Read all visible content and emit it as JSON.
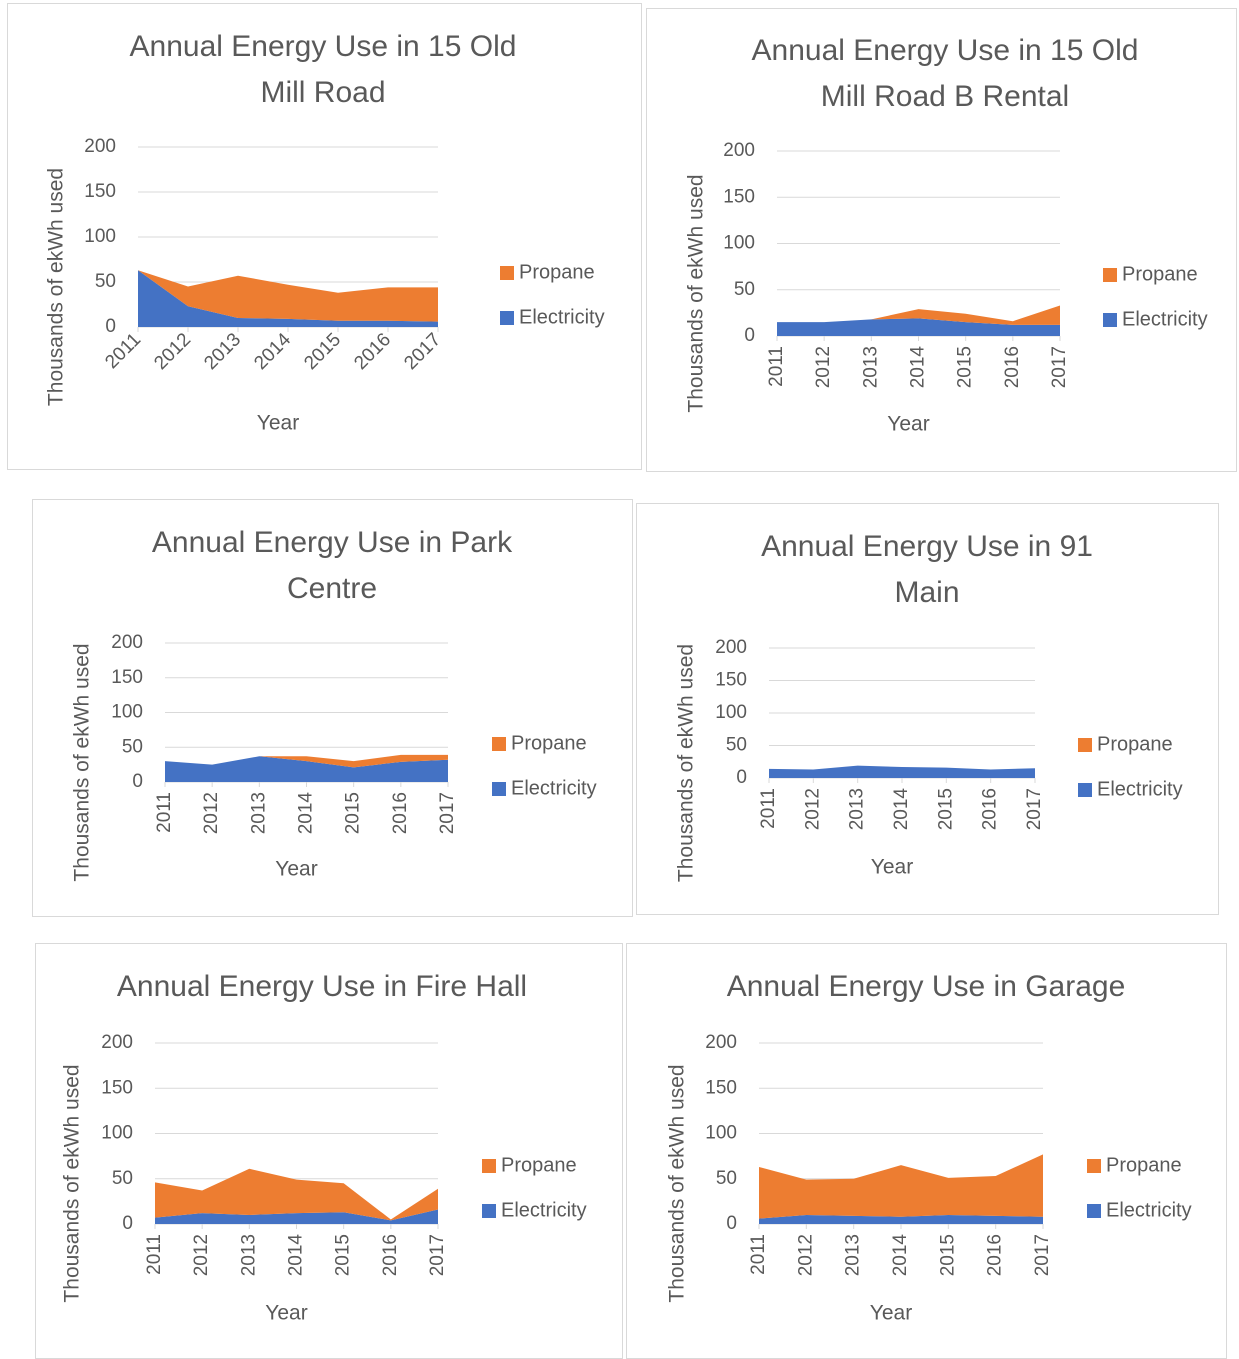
{
  "chart_data": [
    {
      "type": "area",
      "title": "Annual Energy Use in 15 Old Mill Road",
      "xlabel": "Year",
      "ylabel": "Thousands of ekWh used",
      "categories": [
        "2011",
        "2012",
        "2013",
        "2014",
        "2015",
        "2016",
        "2017"
      ],
      "series": [
        {
          "name": "Electricity",
          "color": "#4472c4",
          "values": [
            63,
            23,
            10,
            9,
            7,
            7,
            6
          ]
        },
        {
          "name": "Propane",
          "color": "#ed7d31",
          "values": [
            0,
            22,
            47,
            38,
            31,
            37,
            38
          ]
        }
      ],
      "ylim": [
        0,
        200
      ],
      "yticks": [
        0,
        50,
        100,
        150,
        200
      ],
      "grid": true,
      "stacked": true,
      "legend": "right"
    },
    {
      "type": "area",
      "title": "Annual Energy Use in 15 Old Mill Road B Rental",
      "xlabel": "Year",
      "ylabel": "Thousands of ekWh used",
      "categories": [
        "2011",
        "2012",
        "2013",
        "2014",
        "2015",
        "2016",
        "2017"
      ],
      "series": [
        {
          "name": "Electricity",
          "color": "#4472c4",
          "values": [
            15,
            15,
            18,
            19,
            15,
            12,
            12
          ]
        },
        {
          "name": "Propane",
          "color": "#ed7d31",
          "values": [
            0,
            0,
            0,
            10,
            9,
            4,
            21
          ]
        }
      ],
      "ylim": [
        0,
        200
      ],
      "yticks": [
        0,
        50,
        100,
        150,
        200
      ],
      "grid": true,
      "stacked": true,
      "legend": "right"
    },
    {
      "type": "area",
      "title": "Annual Energy Use in Park Centre",
      "xlabel": "Year",
      "ylabel": "Thousands of ekWh used",
      "categories": [
        "2011",
        "2012",
        "2013",
        "2014",
        "2015",
        "2016",
        "2017"
      ],
      "series": [
        {
          "name": "Electricity",
          "color": "#4472c4",
          "values": [
            30,
            25,
            37,
            30,
            21,
            29,
            32
          ]
        },
        {
          "name": "Propane",
          "color": "#ed7d31",
          "values": [
            0,
            0,
            0,
            7,
            9,
            10,
            7
          ]
        }
      ],
      "ylim": [
        0,
        200
      ],
      "yticks": [
        0,
        50,
        100,
        150,
        200
      ],
      "grid": true,
      "stacked": true,
      "legend": "right"
    },
    {
      "type": "area",
      "title": "Annual Energy Use in 91 Main",
      "xlabel": "Year",
      "ylabel": "Thousands of ekWh used",
      "categories": [
        "2011",
        "2012",
        "2013",
        "2014",
        "2015",
        "2016",
        "2017"
      ],
      "series": [
        {
          "name": "Electricity",
          "color": "#4472c4",
          "values": [
            14,
            13,
            19,
            17,
            16,
            13,
            15
          ]
        },
        {
          "name": "Propane",
          "color": "#ed7d31",
          "values": [
            0,
            0,
            0,
            0,
            0,
            0,
            0
          ]
        }
      ],
      "ylim": [
        0,
        200
      ],
      "yticks": [
        0,
        50,
        100,
        150,
        200
      ],
      "grid": true,
      "stacked": true,
      "legend": "right"
    },
    {
      "type": "area",
      "title": "Annual Energy Use in Fire Hall",
      "xlabel": "Year",
      "ylabel": "Thousands of ekWh used",
      "categories": [
        "2011",
        "2012",
        "2013",
        "2014",
        "2015",
        "2016",
        "2017"
      ],
      "series": [
        {
          "name": "Electricity",
          "color": "#4472c4",
          "values": [
            7,
            12,
            10,
            12,
            13,
            4,
            16
          ]
        },
        {
          "name": "Propane",
          "color": "#ed7d31",
          "values": [
            39,
            25,
            51,
            37,
            32,
            1,
            23
          ]
        }
      ],
      "ylim": [
        0,
        200
      ],
      "yticks": [
        0,
        50,
        100,
        150,
        200
      ],
      "grid": true,
      "stacked": true,
      "legend": "right"
    },
    {
      "type": "area",
      "title": "Annual Energy Use in Garage",
      "xlabel": "Year",
      "ylabel": "Thousands of ekWh used",
      "categories": [
        "2011",
        "2012",
        "2013",
        "2014",
        "2015",
        "2016",
        "2017"
      ],
      "series": [
        {
          "name": "Electricity",
          "color": "#4472c4",
          "values": [
            6,
            10,
            9,
            8,
            10,
            9,
            8
          ]
        },
        {
          "name": "Propane",
          "color": "#ed7d31",
          "values": [
            57,
            39,
            41,
            57,
            41,
            44,
            69
          ]
        }
      ],
      "ylim": [
        0,
        200
      ],
      "yticks": [
        0,
        50,
        100,
        150,
        200
      ],
      "grid": true,
      "stacked": true,
      "legend": "right"
    }
  ]
}
